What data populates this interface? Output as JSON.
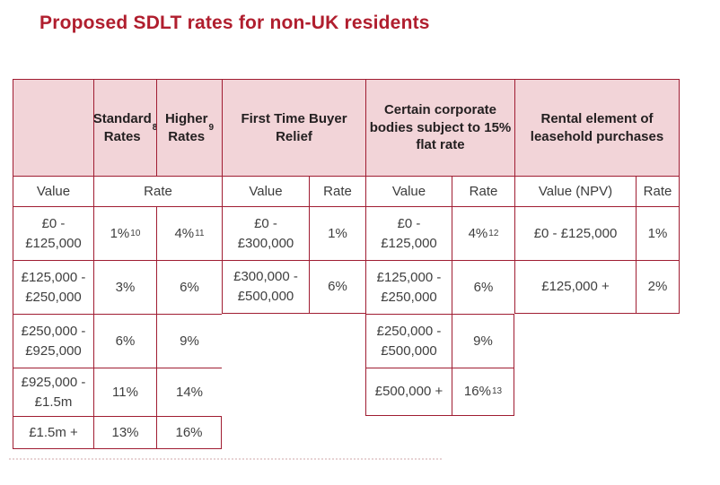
{
  "page_title": "Proposed SDLT rates for non-UK residents",
  "colors": {
    "accent_red": "#b01e2e",
    "table_border": "#a01d32",
    "header_pink": "#f2d4d8",
    "body_text": "#3f3f3f"
  },
  "table": {
    "group_headers": {
      "standard": {
        "t": "Standard\nRates",
        "s": "8"
      },
      "higher": {
        "t": "Higher\nRates",
        "s": "9"
      },
      "ftb": {
        "t": "First Time Buyer\nRelief"
      },
      "corporate": {
        "t": "Certain corporate\nbodies subject to 15%\nflat rate"
      },
      "rental": {
        "t": "Rental element of\nleasehold purchases"
      }
    },
    "sub_headers": {
      "main_value": "Value",
      "main_rate": "Rate",
      "ftb_value": "Value",
      "ftb_rate": "Rate",
      "corp_value": "Value",
      "corp_rate": "Rate",
      "rental_value": "Value (NPV)",
      "rental_rate": "Rate"
    },
    "cells": {
      "main": [
        [
          {
            "t": "£0 -\n£125,000"
          },
          {
            "t": "1%",
            "s": "10"
          },
          {
            "t": "4%",
            "s": "11"
          }
        ],
        [
          {
            "t": "£125,000 -\n£250,000"
          },
          {
            "t": "3%"
          },
          {
            "t": "6%"
          }
        ],
        [
          {
            "t": "£250,000 -\n£925,000"
          },
          {
            "t": "6%"
          },
          {
            "t": "9%"
          }
        ],
        [
          {
            "t": "£925,000 -\n£1.5m"
          },
          {
            "t": "11%"
          },
          {
            "t": "14%"
          }
        ],
        [
          {
            "t": "£1.5m +"
          },
          {
            "t": "13%"
          },
          {
            "t": "16%"
          }
        ]
      ],
      "ftb": [
        [
          {
            "t": "£0 -\n£300,000"
          },
          {
            "t": "1%"
          }
        ],
        [
          {
            "t": "£300,000 -\n£500,000"
          },
          {
            "t": "6%"
          }
        ]
      ],
      "corporate": [
        [
          {
            "t": "£0 -\n£125,000"
          },
          {
            "t": "4%",
            "s": "12"
          }
        ],
        [
          {
            "t": "£125,000 -\n£250,000"
          },
          {
            "t": "6%"
          }
        ],
        [
          {
            "t": "£250,000 -\n£500,000"
          },
          {
            "t": "9%"
          }
        ],
        [
          {
            "t": "£500,000 +"
          },
          {
            "t": "16%",
            "s": "13"
          }
        ]
      ],
      "rental": [
        [
          {
            "t": "£0 - £125,000"
          },
          {
            "t": "1%"
          }
        ],
        [
          {
            "t": "£125,000 +"
          },
          {
            "t": "2%"
          }
        ]
      ]
    }
  }
}
